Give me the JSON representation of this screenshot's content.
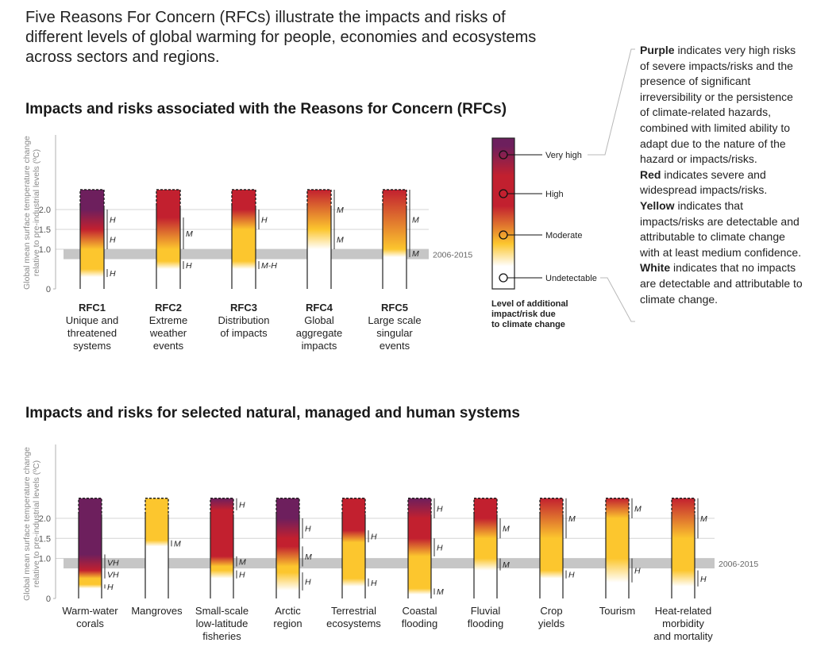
{
  "intro": {
    "line1": "Five Reasons For Concern (RFCs) illustrate the impacts and risks of",
    "line2": "different levels of global warming for people, economies and ecosystems",
    "line3": "across sectors and regions."
  },
  "legend_text": {
    "purple_word": "Purple",
    "purple_text": " indicates very high risks of severe impacts/risks and the presence of significant irreversibility or the persistence of climate-related hazards, combined with limited ability to adapt due to the nature of the hazard or impacts/risks.",
    "red_word": "Red",
    "red_text": " indicates severe and widespread impacts/risks.",
    "yellow_word": "Yellow",
    "yellow_text": " indicates that impacts/risks are detectable and attributable to climate change with at least medium confidence.",
    "white_word": "White",
    "white_text": " indicates that no impacts are detectable and attributable to climate change."
  },
  "colorbar": {
    "levels": [
      "Very high",
      "High",
      "Moderate",
      "Undetectable"
    ],
    "title_lines": [
      "Level of additional",
      "impact/risk due",
      "to climate change"
    ]
  },
  "colors": {
    "purple": "#6d1f5d",
    "red": "#c2202f",
    "yellow": "#fcc62e",
    "white": "#ffffff",
    "band": "#c6c6c6"
  },
  "chart_data": [
    {
      "type": "bar",
      "title": "Impacts and risks associated with the Reasons for Concern (RFCs)",
      "ylabel_lines": [
        "Global mean surface temperature change",
        "relative to pre-industrial levels (ºC)"
      ],
      "ylim": [
        0,
        2.5
      ],
      "yticks": [
        "0",
        "1.0",
        "1.5",
        "2.0"
      ],
      "band_label": "2006-2015",
      "band_range": [
        0.75,
        1.0
      ],
      "grid": true,
      "categories": [
        {
          "code": "RFC1",
          "lines": [
            "Unique and",
            "threatened",
            "systems"
          ]
        },
        {
          "code": "RFC2",
          "lines": [
            "Extreme",
            "weather",
            "events"
          ]
        },
        {
          "code": "RFC3",
          "lines": [
            "Distribution",
            "of impacts"
          ]
        },
        {
          "code": "RFC4",
          "lines": [
            "Global",
            "aggregate",
            "impacts"
          ]
        },
        {
          "code": "RFC5",
          "lines": [
            "Large scale",
            "singular",
            "events"
          ]
        }
      ],
      "transitions": [
        [
          {
            "level": "yellow",
            "start": 0.3,
            "end": 0.5,
            "conf": "H"
          },
          {
            "level": "red",
            "start": 1.0,
            "end": 1.5,
            "conf": "H"
          },
          {
            "level": "purple",
            "start": 1.5,
            "end": 2.0,
            "conf": "H"
          }
        ],
        [
          {
            "level": "yellow",
            "start": 0.5,
            "end": 0.7,
            "conf": "H"
          },
          {
            "level": "red",
            "start": 1.0,
            "end": 1.8,
            "conf": "M"
          }
        ],
        [
          {
            "level": "yellow",
            "start": 0.5,
            "end": 0.7,
            "conf": "M-H"
          },
          {
            "level": "red",
            "start": 1.5,
            "end": 2.0,
            "conf": "H"
          }
        ],
        [
          {
            "level": "yellow",
            "start": 1.0,
            "end": 1.5,
            "conf": "M"
          },
          {
            "level": "red",
            "start": 1.5,
            "end": 2.5,
            "conf": "M"
          }
        ],
        [
          {
            "level": "yellow",
            "start": 0.8,
            "end": 1.0,
            "conf": "M"
          },
          {
            "level": "red",
            "start": 1.0,
            "end": 2.5,
            "conf": "M"
          }
        ]
      ]
    },
    {
      "type": "bar",
      "title": "Impacts and risks for selected natural, managed and human systems",
      "ylabel_lines": [
        "Global mean surface temperature change",
        "relative to pre-industrial levels (ºC)"
      ],
      "ylim": [
        0,
        2.5
      ],
      "yticks": [
        "0",
        "1.0",
        "1.5",
        "2.0"
      ],
      "band_label": "2006-2015",
      "band_range": [
        0.75,
        1.0
      ],
      "grid": true,
      "categories": [
        {
          "lines": [
            "Warm-water",
            "corals"
          ]
        },
        {
          "lines": [
            "Mangroves"
          ]
        },
        {
          "lines": [
            "Small-scale",
            "low-latitude",
            "fisheries"
          ]
        },
        {
          "lines": [
            "Arctic",
            "region"
          ]
        },
        {
          "lines": [
            "Terrestrial",
            "ecosystems"
          ]
        },
        {
          "lines": [
            "Coastal",
            "flooding"
          ]
        },
        {
          "lines": [
            "Fluvial",
            "flooding"
          ]
        },
        {
          "lines": [
            "Crop",
            "yields"
          ]
        },
        {
          "lines": [
            "Tourism"
          ]
        },
        {
          "lines": [
            "Heat-related",
            "morbidity",
            "and mortality"
          ]
        }
      ],
      "transitions": [
        [
          {
            "level": "yellow",
            "start": 0.25,
            "end": 0.35,
            "conf": "H"
          },
          {
            "level": "red",
            "start": 0.5,
            "end": 0.7,
            "conf": "VH"
          },
          {
            "level": "purple",
            "start": 0.7,
            "end": 1.1,
            "conf": "VH"
          }
        ],
        [
          {
            "level": "yellow",
            "start": 1.3,
            "end": 1.45,
            "conf": "M"
          }
        ],
        [
          {
            "level": "yellow",
            "start": 0.5,
            "end": 0.7,
            "conf": "H"
          },
          {
            "level": "red",
            "start": 0.8,
            "end": 1.05,
            "conf": "M"
          },
          {
            "level": "purple",
            "start": 2.2,
            "end": 2.5,
            "conf": "H"
          }
        ],
        [
          {
            "level": "yellow",
            "start": 0.2,
            "end": 0.65,
            "conf": "H"
          },
          {
            "level": "red",
            "start": 0.8,
            "end": 1.3,
            "conf": "M"
          },
          {
            "level": "purple",
            "start": 1.5,
            "end": 2.0,
            "conf": "H"
          }
        ],
        [
          {
            "level": "yellow",
            "start": 0.3,
            "end": 0.5,
            "conf": "H"
          },
          {
            "level": "red",
            "start": 1.4,
            "end": 1.7,
            "conf": "H"
          }
        ],
        [
          {
            "level": "yellow",
            "start": 0.1,
            "end": 0.25,
            "conf": "M"
          },
          {
            "level": "red",
            "start": 1.05,
            "end": 1.5,
            "conf": "H"
          },
          {
            "level": "purple",
            "start": 2.0,
            "end": 2.5,
            "conf": "H"
          }
        ],
        [
          {
            "level": "yellow",
            "start": 0.7,
            "end": 1.0,
            "conf": "M"
          },
          {
            "level": "red",
            "start": 1.5,
            "end": 2.0,
            "conf": "M"
          }
        ],
        [
          {
            "level": "yellow",
            "start": 0.5,
            "end": 0.7,
            "conf": "H"
          },
          {
            "level": "red",
            "start": 1.5,
            "end": 2.5,
            "conf": "M"
          }
        ],
        [
          {
            "level": "yellow",
            "start": 0.4,
            "end": 1.0,
            "conf": "H"
          },
          {
            "level": "red",
            "start": 2.0,
            "end": 2.5,
            "conf": "M"
          }
        ],
        [
          {
            "level": "yellow",
            "start": 0.3,
            "end": 0.7,
            "conf": "H"
          },
          {
            "level": "red",
            "start": 1.5,
            "end": 2.5,
            "conf": "M"
          }
        ]
      ]
    }
  ]
}
